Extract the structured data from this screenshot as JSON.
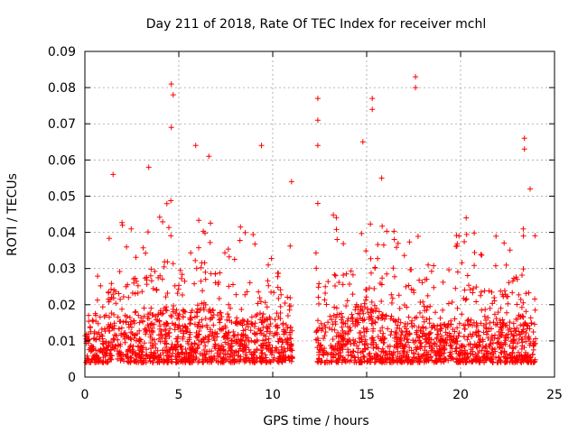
{
  "chart_data": {
    "type": "scatter",
    "title": "Day 211 of 2018, Rate Of TEC Index for receiver mchl",
    "xlabel": "GPS time / hours",
    "ylabel": "ROTI / TECUs",
    "xlim": [
      0,
      25
    ],
    "ylim": [
      0,
      0.09
    ],
    "x_ticks": [
      "0",
      "5",
      "10",
      "15",
      "20",
      "25"
    ],
    "y_ticks": [
      "0",
      "0.01",
      "0.02",
      "0.03",
      "0.04",
      "0.05",
      "0.06",
      "0.07",
      "0.08",
      "0.09"
    ],
    "grid": true,
    "series_color": "#ff0000",
    "marker": "+",
    "data_gap_hours": [
      11.1,
      12.3
    ],
    "notable_points": [
      {
        "x": 4.6,
        "y": 0.081
      },
      {
        "x": 4.7,
        "y": 0.078
      },
      {
        "x": 4.6,
        "y": 0.069
      },
      {
        "x": 5.9,
        "y": 0.064
      },
      {
        "x": 9.4,
        "y": 0.064
      },
      {
        "x": 12.4,
        "y": 0.077
      },
      {
        "x": 12.4,
        "y": 0.071
      },
      {
        "x": 12.4,
        "y": 0.064
      },
      {
        "x": 14.8,
        "y": 0.065
      },
      {
        "x": 15.3,
        "y": 0.077
      },
      {
        "x": 15.3,
        "y": 0.074
      },
      {
        "x": 17.6,
        "y": 0.083
      },
      {
        "x": 17.6,
        "y": 0.08
      },
      {
        "x": 23.4,
        "y": 0.066
      },
      {
        "x": 23.4,
        "y": 0.063
      },
      {
        "x": 1.5,
        "y": 0.056
      },
      {
        "x": 3.4,
        "y": 0.058
      },
      {
        "x": 6.6,
        "y": 0.061
      },
      {
        "x": 11.0,
        "y": 0.054
      },
      {
        "x": 12.4,
        "y": 0.048
      },
      {
        "x": 15.8,
        "y": 0.055
      },
      {
        "x": 20.3,
        "y": 0.044
      },
      {
        "x": 23.7,
        "y": 0.052
      }
    ],
    "density_profile_hours": [
      [
        0.0,
        0.015
      ],
      [
        0.5,
        0.013
      ],
      [
        1.0,
        0.018
      ],
      [
        1.5,
        0.022
      ],
      [
        2.0,
        0.024
      ],
      [
        2.5,
        0.023
      ],
      [
        3.0,
        0.025
      ],
      [
        3.5,
        0.026
      ],
      [
        4.0,
        0.028
      ],
      [
        4.5,
        0.03
      ],
      [
        5.0,
        0.027
      ],
      [
        5.5,
        0.027
      ],
      [
        6.0,
        0.029
      ],
      [
        6.5,
        0.028
      ],
      [
        7.0,
        0.026
      ],
      [
        7.5,
        0.024
      ],
      [
        8.0,
        0.023
      ],
      [
        8.5,
        0.022
      ],
      [
        9.0,
        0.024
      ],
      [
        9.5,
        0.026
      ],
      [
        10.0,
        0.022
      ],
      [
        10.5,
        0.02
      ],
      [
        11.0,
        0.018
      ],
      [
        12.3,
        0.016
      ],
      [
        12.7,
        0.02
      ],
      [
        13.0,
        0.024
      ],
      [
        13.5,
        0.026
      ],
      [
        14.0,
        0.025
      ],
      [
        14.5,
        0.027
      ],
      [
        15.0,
        0.032
      ],
      [
        15.5,
        0.03
      ],
      [
        16.0,
        0.026
      ],
      [
        16.5,
        0.024
      ],
      [
        17.0,
        0.022
      ],
      [
        17.5,
        0.021
      ],
      [
        18.0,
        0.02
      ],
      [
        18.5,
        0.019
      ],
      [
        19.0,
        0.019
      ],
      [
        19.5,
        0.02
      ],
      [
        20.0,
        0.021
      ],
      [
        20.5,
        0.022
      ],
      [
        21.0,
        0.022
      ],
      [
        21.5,
        0.021
      ],
      [
        22.0,
        0.02
      ],
      [
        22.5,
        0.021
      ],
      [
        23.0,
        0.024
      ],
      [
        23.5,
        0.025
      ],
      [
        24.0,
        0.02
      ]
    ],
    "bulk_floor": 0.004
  }
}
